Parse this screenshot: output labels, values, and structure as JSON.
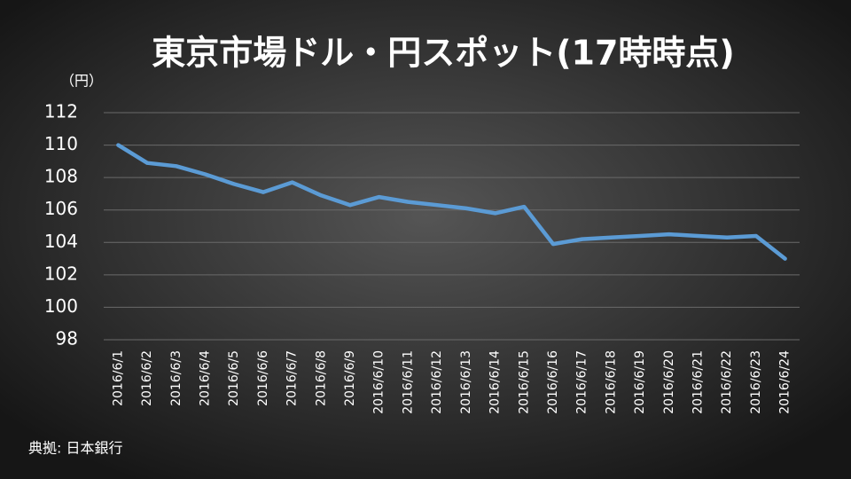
{
  "chart_data": {
    "type": "line",
    "title": "東京市場ドル・円スポット(17時時点)",
    "y_unit": "（円）",
    "source": "典拠: 日本銀行",
    "categories": [
      "2016/6/1",
      "2016/6/2",
      "2016/6/3",
      "2016/6/4",
      "2016/6/5",
      "2016/6/6",
      "2016/6/7",
      "2016/6/8",
      "2016/6/9",
      "2016/6/10",
      "2016/6/11",
      "2016/6/12",
      "2016/6/13",
      "2016/6/14",
      "2016/6/15",
      "2016/6/16",
      "2016/6/17",
      "2016/6/18",
      "2016/6/19",
      "2016/6/20",
      "2016/6/21",
      "2016/6/22",
      "2016/6/23",
      "2016/6/24"
    ],
    "values": [
      110.0,
      108.9,
      108.7,
      108.2,
      107.6,
      107.1,
      107.7,
      106.9,
      106.3,
      106.8,
      106.5,
      106.3,
      106.1,
      105.8,
      106.2,
      103.9,
      104.2,
      104.3,
      104.4,
      104.5,
      104.4,
      104.3,
      104.4,
      103.0
    ],
    "color": "#5b9bd5",
    "ylim": [
      98,
      112
    ],
    "yticks": [
      98,
      100,
      102,
      104,
      106,
      108,
      110,
      112
    ],
    "grid": true
  }
}
